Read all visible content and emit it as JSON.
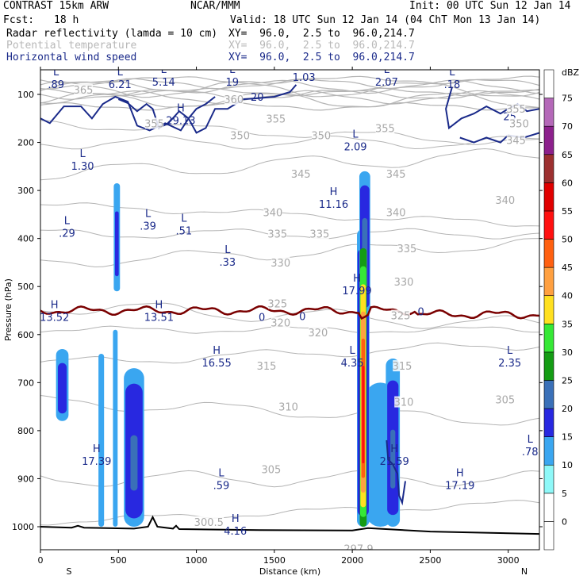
{
  "header": {
    "model": "CONTRAST 15km ARW",
    "org": "NCAR/MMM",
    "init": "Init: 00 UTC Sun 12 Jan 14",
    "fcst_label": "Fcst:",
    "fcst_value": "18 h",
    "valid": "Valid: 18 UTC Sun 12 Jan 14 (04 ChT Mon 13 Jan 14)",
    "fields": [
      {
        "name": "Radar reflectivity (lamda = 10 cm)",
        "xy": "XY=  96.0,  2.5 to  96.0,214.7",
        "color": "#000000"
      },
      {
        "name": "Potential temperature",
        "xy": "XY=  96.0,  2.5 to  96.0,214.7",
        "color": "#b8b8b8"
      },
      {
        "name": "Horizontal wind speed",
        "xy": "XY=  96.0,  2.5 to  96.0,214.7",
        "color": "#1a2a8a"
      }
    ]
  },
  "chart_data": {
    "type": "cross-section",
    "xlabel": "Distance (km)",
    "ylabel": "Pressure (hPa)",
    "xlim": [
      0,
      3200
    ],
    "ylim": [
      1050,
      60
    ],
    "x_ticks": [
      0,
      500,
      1000,
      1500,
      2000,
      2500,
      3000
    ],
    "y_ticks": [
      100,
      200,
      300,
      400,
      500,
      600,
      700,
      800,
      900,
      1000
    ],
    "x_end_labels": {
      "left": "S",
      "right": "N"
    },
    "colorbar": {
      "unit": "dBZ",
      "ticks": [
        0,
        5,
        10,
        15,
        20,
        25,
        30,
        35,
        40,
        45,
        50,
        55,
        60,
        65,
        70,
        75
      ],
      "colors": [
        "#ffffff",
        "#ffffff",
        "#8ef8f8",
        "#3aa6f0",
        "#2828e0",
        "#3a70b8",
        "#149c14",
        "#36e836",
        "#ffe020",
        "#ffa040",
        "#ff6010",
        "#ff1010",
        "#e00000",
        "#9c3030",
        "#8c208c",
        "#b468b8",
        "#ffffff"
      ]
    },
    "theta_labels": [
      {
        "text": "365",
        "x": 275,
        "p": 90
      },
      {
        "text": "360",
        "x": 1240,
        "p": 110
      },
      {
        "text": "355",
        "x": 730,
        "p": 160
      },
      {
        "text": "355",
        "x": 1510,
        "p": 150
      },
      {
        "text": "355",
        "x": 2210,
        "p": 170
      },
      {
        "text": "355",
        "x": 3050,
        "p": 130
      },
      {
        "text": "350",
        "x": 1280,
        "p": 185
      },
      {
        "text": "350",
        "x": 1800,
        "p": 185
      },
      {
        "text": "350",
        "x": 3070,
        "p": 160
      },
      {
        "text": "345",
        "x": 1670,
        "p": 265
      },
      {
        "text": "345",
        "x": 2280,
        "p": 265
      },
      {
        "text": "345",
        "x": 3050,
        "p": 195
      },
      {
        "text": "340",
        "x": 1490,
        "p": 345
      },
      {
        "text": "340",
        "x": 2280,
        "p": 345
      },
      {
        "text": "340",
        "x": 2980,
        "p": 320
      },
      {
        "text": "335",
        "x": 1520,
        "p": 390
      },
      {
        "text": "335",
        "x": 1790,
        "p": 390
      },
      {
        "text": "335",
        "x": 2350,
        "p": 420
      },
      {
        "text": "330",
        "x": 1540,
        "p": 450
      },
      {
        "text": "330",
        "x": 2330,
        "p": 490
      },
      {
        "text": "325",
        "x": 1520,
        "p": 535
      },
      {
        "text": "325",
        "x": 2310,
        "p": 560
      },
      {
        "text": "320",
        "x": 1540,
        "p": 575
      },
      {
        "text": "320",
        "x": 1780,
        "p": 595
      },
      {
        "text": "315",
        "x": 1450,
        "p": 665
      },
      {
        "text": "315",
        "x": 2320,
        "p": 665
      },
      {
        "text": "310",
        "x": 1590,
        "p": 750
      },
      {
        "text": "310",
        "x": 2330,
        "p": 740
      },
      {
        "text": "305",
        "x": 2980,
        "p": 735
      },
      {
        "text": "305",
        "x": 1480,
        "p": 880
      },
      {
        "text": "300.5",
        "x": 1080,
        "p": 990
      },
      {
        "text": "297.9",
        "x": 2040,
        "p": 1045
      }
    ],
    "wind_extrema": [
      {
        "type": "L",
        "value": ".89",
        "x": 100,
        "p": 70
      },
      {
        "type": "L",
        "value": "6.21",
        "x": 510,
        "p": 70
      },
      {
        "type": "L",
        "value": "5.14",
        "x": 790,
        "p": 65
      },
      {
        "type": "H",
        "value": "29.13",
        "x": 900,
        "p": 145
      },
      {
        "type": "L",
        "value": "19",
        "x": 1230,
        "p": 65
      },
      {
        "type": "L",
        "value": "1.03",
        "x": 1690,
        "p": 55
      },
      {
        "type": "L",
        "value": "2.07",
        "x": 2220,
        "p": 65
      },
      {
        "type": "L",
        "value": ".18",
        "x": 2640,
        "p": 70
      },
      {
        "type": "L",
        "value": "1.30",
        "x": 270,
        "p": 240
      },
      {
        "type": "L",
        "value": "2.09",
        "x": 2020,
        "p": 200
      },
      {
        "type": "H",
        "value": "11.16",
        "x": 1880,
        "p": 320
      },
      {
        "type": "L",
        "value": ".29",
        "x": 170,
        "p": 380
      },
      {
        "type": "L",
        "value": ".39",
        "x": 690,
        "p": 365
      },
      {
        "type": "L",
        "value": ".51",
        "x": 920,
        "p": 375
      },
      {
        "type": "L",
        "value": ".33",
        "x": 1200,
        "p": 440
      },
      {
        "type": "H",
        "value": "17.99",
        "x": 2030,
        "p": 500
      },
      {
        "type": "H",
        "value": "13.52",
        "x": 90,
        "p": 555
      },
      {
        "type": "H",
        "value": "13.51",
        "x": 760,
        "p": 555
      },
      {
        "type": "H",
        "value": "16.55",
        "x": 1130,
        "p": 650
      },
      {
        "type": "L",
        "value": "4.35",
        "x": 2000,
        "p": 650
      },
      {
        "type": "L",
        "value": "2.35",
        "x": 3010,
        "p": 650
      },
      {
        "type": "H",
        "value": "17.39",
        "x": 360,
        "p": 855
      },
      {
        "type": "H",
        "value": "21.59",
        "x": 2270,
        "p": 855
      },
      {
        "type": "H",
        "value": "17.19",
        "x": 2690,
        "p": 905
      },
      {
        "type": "L",
        "value": ".78",
        "x": 3140,
        "p": 835
      },
      {
        "type": "L",
        "value": ".59",
        "x": 1160,
        "p": 905
      },
      {
        "type": "H",
        "value": "4.16",
        "x": 1250,
        "p": 1000
      }
    ],
    "wind_contour_labels": [
      {
        "text": "20",
        "x": 1390,
        "p": 105
      },
      {
        "text": "25",
        "x": 3010,
        "p": 145
      }
    ],
    "zero_labels": [
      {
        "text": "0",
        "x": 1420,
        "p": 565
      },
      {
        "text": "0",
        "x": 1680,
        "p": 563
      },
      {
        "text": "0",
        "x": 2440,
        "p": 553
      }
    ]
  }
}
